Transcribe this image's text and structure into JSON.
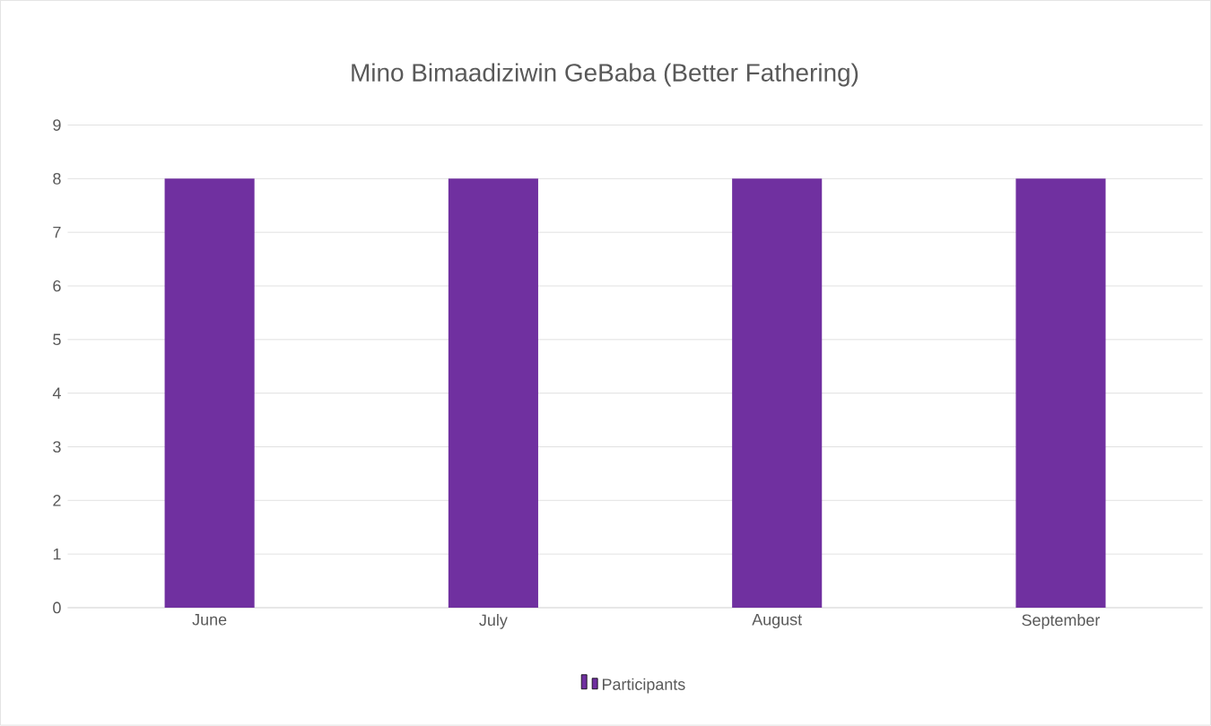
{
  "chart_data": {
    "type": "bar",
    "title": "Mino Bimaadiziwin GeBaba (Better Fathering)",
    "categories": [
      "June",
      "July",
      "August",
      "September"
    ],
    "series": [
      {
        "name": "Participants",
        "color": "#7030a0",
        "values": [
          8,
          8,
          8,
          8
        ]
      }
    ],
    "ylim": [
      0,
      9
    ],
    "yticks": [
      0,
      1,
      2,
      3,
      4,
      5,
      6,
      7,
      8,
      9
    ],
    "grid": "y",
    "legend": "bottom"
  }
}
